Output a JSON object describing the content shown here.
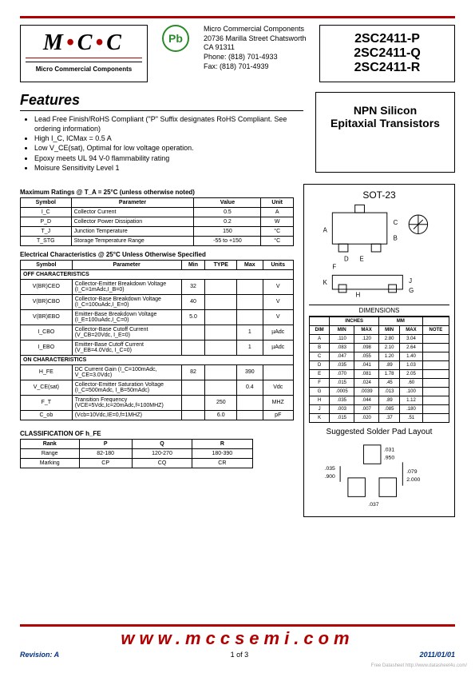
{
  "logo": {
    "text": "MCC",
    "sub": "Micro Commercial Components",
    "tm": "TM"
  },
  "pb": "Pb",
  "addr": {
    "l1": "Micro Commercial Components",
    "l2": "20736 Marilla Street Chatsworth",
    "l3": "CA 91311",
    "l4": "Phone: (818) 701-4933",
    "l5": "Fax:     (818) 701-4939"
  },
  "parts": [
    "2SC2411-P",
    "2SC2411-Q",
    "2SC2411-R"
  ],
  "features_h": "Features",
  "features": [
    "Lead Free Finish/RoHS Compliant (\"P\" Suffix designates RoHS Compliant.  See ordering information)",
    "High I_C, ICMax = 0.5 A",
    "Low  V_CE(sat), Optimal for low voltage operation.",
    "Epoxy meets UL 94 V-0 flammability rating",
    "Moisure Sensitivity Level 1"
  ],
  "desc": {
    "l1": "NPN Silicon",
    "l2": "Epitaxial Transistors"
  },
  "max_title": "Maximum Ratings @ T_A = 25°C (unless otherwise noted)",
  "max_head": [
    "Symbol",
    "Parameter",
    "Value",
    "Unit"
  ],
  "max_rows": [
    [
      "I_C",
      "Collector Current",
      "0.5",
      "A"
    ],
    [
      "P_D",
      "Collector Power Dissipation",
      "0.2",
      "W"
    ],
    [
      "T_J",
      "Junction Temperature",
      "150",
      "°C"
    ],
    [
      "T_STG",
      "Storage Temperature Range",
      "-55 to +150",
      "°C"
    ]
  ],
  "elec_title": "Electrical Characteristics @ 25°C Unless Otherwise Specified",
  "elec_head": [
    "Symbol",
    "Parameter",
    "Min",
    "TYPE",
    "Max",
    "Units"
  ],
  "elec_sec1": "OFF CHARACTERISTICS",
  "elec_rows1": [
    [
      "V(BR)CEO",
      "Collector-Emitter Breakdown Voltage (I_C=1mAdc,I_B=0)",
      "32",
      "",
      "",
      "V"
    ],
    [
      "V(BR)CBO",
      "Collector-Base Breakdown Voltage (I_C=100uAdc,I_E=0)",
      "40",
      "",
      "",
      "V"
    ],
    [
      "V(BR)EBO",
      "Emitter-Base Breakdown Voltage (I_E=100uAdc,I_C=0)",
      "5.0",
      "",
      "",
      "V"
    ],
    [
      "I_CBO",
      "Collector-Base Cutoff Current (V_CB=20Vdc, I_E=0)",
      "",
      "",
      "1",
      "µAdc"
    ],
    [
      "I_EBO",
      "Emitter-Base Cutoff Current (V_EB=4.0Vdc, I_C=0)",
      "",
      "",
      "1",
      "µAdc"
    ]
  ],
  "elec_sec2": "ON CHARACTERISTICS",
  "elec_rows2": [
    [
      "H_FE",
      "DC Current Gain (I_C=100mAdc, V_CE=3.0Vdc)",
      "82",
      "",
      "390",
      ""
    ],
    [
      "V_CE(sat)",
      "Collector-Emitter Saturation Voltage (I_C=500mAdc, I_B=50mAdc)",
      "",
      "",
      "0.4",
      "Vdc"
    ],
    [
      "F_T",
      "Transition Frequency (VCE=5Vdc,Ic=20mAdc,f=100MHZ)",
      "",
      "250",
      "",
      "MHZ"
    ],
    [
      "C_ob",
      "(Vcb=10Vdc,IE=0,f=1MHZ)",
      "",
      "6.0",
      "",
      "pF"
    ]
  ],
  "class_title": "CLASSIFICATION OF h_FE",
  "class_head": [
    "Rank",
    "P",
    "Q",
    "R"
  ],
  "class_rows": [
    [
      "Range",
      "82-180",
      "120-270",
      "180-390"
    ],
    [
      "Marking",
      "CP",
      "CQ",
      "CR"
    ]
  ],
  "sot_title": "SOT-23",
  "dim_title": "DIMENSIONS",
  "dim_head1": [
    "",
    "INCHES",
    "",
    "MM",
    "",
    ""
  ],
  "dim_head2": [
    "DIM",
    "MIN",
    "MAX",
    "MIN",
    "MAX",
    "NOTE"
  ],
  "dim_rows": [
    [
      "A",
      ".110",
      ".120",
      "2.80",
      "3.04",
      ""
    ],
    [
      "B",
      ".083",
      ".098",
      "2.10",
      "2.64",
      ""
    ],
    [
      "C",
      ".047",
      ".055",
      "1.20",
      "1.40",
      ""
    ],
    [
      "D",
      ".035",
      ".041",
      ".89",
      "1.03",
      ""
    ],
    [
      "E",
      ".070",
      ".081",
      "1.78",
      "2.05",
      ""
    ],
    [
      "F",
      ".015",
      ".024",
      ".45",
      ".60",
      ""
    ],
    [
      "G",
      ".0005",
      ".0039",
      ".013",
      ".100",
      ""
    ],
    [
      "H",
      ".035",
      ".044",
      ".89",
      "1.12",
      ""
    ],
    [
      "J",
      ".003",
      ".007",
      ".085",
      ".180",
      ""
    ],
    [
      "K",
      ".015",
      ".020",
      ".37",
      ".51",
      ""
    ]
  ],
  "solder_title": "Suggested Solder Pad Layout",
  "solder_dims": {
    "w1": ".035",
    "h1": ".900",
    "pad_w": ".031",
    "gap": ".037",
    "total_w": ".079",
    "total_w2": "2.000",
    "pad_h": ".950"
  },
  "footer": {
    "rev": "Revision: A",
    "page": "1 of 3",
    "date": "2011/01/01",
    "url": "www.mccsemi.com"
  },
  "watermark": "Free Datasheet http://www.datasheet4u.com/",
  "colors": {
    "red": "#b00000",
    "blue": "#003080",
    "green": "#2a8a2a"
  }
}
